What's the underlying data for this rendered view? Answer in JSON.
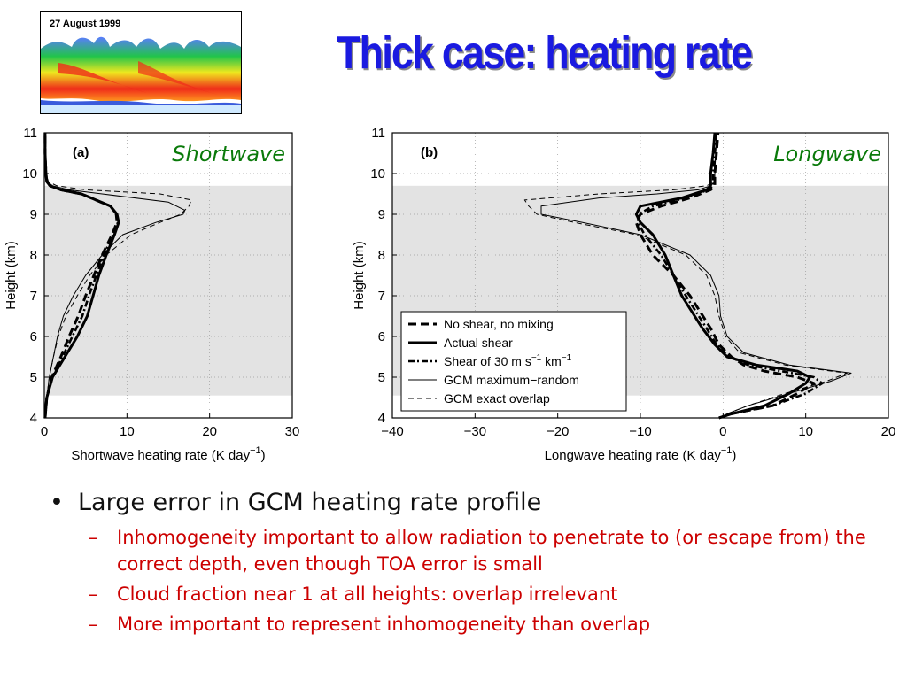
{
  "title": "Thick case: heating rate",
  "thumbnail": {
    "date_label": "27 August 1999"
  },
  "chart_data": [
    {
      "type": "line",
      "panel_label": "(a)",
      "title": "Shortwave",
      "title_color": "#0a7a0a",
      "xlabel": "Shortwave heating rate (K day",
      "xlabel_sup": "−1",
      "xlabel_end": ")",
      "ylabel": "Height (km)",
      "xlim": [
        0,
        30
      ],
      "ylim": [
        4,
        11
      ],
      "xticks": [
        "0",
        "10",
        "20",
        "30"
      ],
      "yticks": [
        "4",
        "5",
        "6",
        "7",
        "8",
        "9",
        "10",
        "11"
      ],
      "grid": true,
      "shaded_band": [
        4.55,
        9.7
      ],
      "series": [
        {
          "style": "dashed-thick",
          "y": [
            4.0,
            4.5,
            5.0,
            5.5,
            6.0,
            6.5,
            7.0,
            7.5,
            8.0,
            8.5,
            8.8,
            9.0,
            9.2,
            9.5,
            9.6,
            9.7,
            9.8,
            10.0,
            10.5,
            11.0
          ],
          "x": [
            0.1,
            0.3,
            0.9,
            2.0,
            3.0,
            4.1,
            5.0,
            6.0,
            7.0,
            8.2,
            8.8,
            8.7,
            8.0,
            4.5,
            2.0,
            0.7,
            0.3,
            0.2,
            0.1,
            0.1
          ]
        },
        {
          "style": "solid-thick",
          "y": [
            4.0,
            4.5,
            5.0,
            5.5,
            6.0,
            6.5,
            7.0,
            7.5,
            8.0,
            8.5,
            8.8,
            9.0,
            9.2,
            9.5,
            9.6,
            9.7,
            9.8,
            10.0,
            10.5,
            11.0
          ],
          "x": [
            0.1,
            0.3,
            1.0,
            2.5,
            4.0,
            5.2,
            5.9,
            6.6,
            7.5,
            8.5,
            9.0,
            8.8,
            8.0,
            4.5,
            2.0,
            0.7,
            0.3,
            0.2,
            0.1,
            0.1
          ]
        },
        {
          "style": "dashdot-thick",
          "y": [
            4.0,
            4.5,
            5.0,
            5.5,
            6.0,
            6.5,
            7.0,
            7.5,
            8.0,
            8.5,
            8.8,
            9.0,
            9.2,
            9.5,
            9.6,
            9.7,
            9.8,
            10.0,
            10.5,
            11.0
          ],
          "x": [
            0.1,
            0.3,
            0.95,
            2.2,
            3.4,
            4.6,
            5.4,
            6.3,
            7.2,
            8.3,
            8.9,
            8.7,
            8.0,
            4.5,
            2.0,
            0.7,
            0.3,
            0.2,
            0.1,
            0.1
          ]
        },
        {
          "style": "solid-thin",
          "y": [
            4.0,
            4.5,
            5.0,
            5.5,
            6.0,
            6.5,
            7.0,
            7.5,
            8.0,
            8.5,
            8.8,
            9.0,
            9.1,
            9.3,
            9.5,
            9.6,
            9.7,
            9.8,
            10.0,
            11.0
          ],
          "x": [
            0.1,
            0.3,
            0.6,
            1.1,
            1.6,
            2.3,
            3.5,
            5.0,
            7.0,
            9.5,
            13.5,
            16.8,
            17.0,
            15.0,
            7.0,
            3.0,
            1.0,
            0.4,
            0.2,
            0.1
          ]
        },
        {
          "style": "dashed-thin",
          "y": [
            4.0,
            4.5,
            5.0,
            5.5,
            6.0,
            6.5,
            7.0,
            7.5,
            8.0,
            8.5,
            8.8,
            9.0,
            9.2,
            9.35,
            9.5,
            9.6,
            9.7,
            9.8,
            10.0,
            11.0
          ],
          "x": [
            0.1,
            0.3,
            0.6,
            1.1,
            1.7,
            2.6,
            4.0,
            5.5,
            7.5,
            10.5,
            14.0,
            16.5,
            17.5,
            17.8,
            14.0,
            5.0,
            1.5,
            0.5,
            0.2,
            0.1
          ]
        }
      ]
    },
    {
      "type": "line",
      "panel_label": "(b)",
      "title": "Longwave",
      "title_color": "#0a7a0a",
      "xlabel": "Longwave heating rate (K day",
      "xlabel_sup": "−1",
      "xlabel_end": ")",
      "ylabel": "Height (km)",
      "xlim": [
        -40,
        20
      ],
      "ylim": [
        4,
        11
      ],
      "xticks": [
        "−40",
        "−30",
        "−20",
        "−10",
        "0",
        "10",
        "20"
      ],
      "yticks": [
        "4",
        "5",
        "6",
        "7",
        "8",
        "9",
        "10",
        "11"
      ],
      "grid": true,
      "shaded_band": [
        4.55,
        9.7
      ],
      "legend_position": "lower-right",
      "legend": [
        {
          "label": "No shear, no mixing",
          "style": "dashed-thick"
        },
        {
          "label": "Actual shear",
          "style": "solid-thick"
        },
        {
          "label": "Shear of 30 m s",
          "sup1": "−1",
          "mid": " km",
          "sup2": "−1",
          "style": "dashdot-thick"
        },
        {
          "label": "GCM maximum−random",
          "style": "solid-thin"
        },
        {
          "label": "GCM exact overlap",
          "style": "dashed-thin"
        }
      ],
      "series": [
        {
          "style": "dashed-thick",
          "y": [
            4.0,
            4.1,
            4.3,
            4.6,
            4.85,
            5.0,
            5.15,
            5.3,
            5.5,
            5.8,
            6.2,
            7.0,
            7.5,
            8.0,
            8.5,
            8.8,
            9.0,
            9.2,
            9.4,
            9.6,
            9.7,
            9.8,
            10.0,
            10.5,
            11.0
          ],
          "x": [
            -0.5,
            1.0,
            6.0,
            9.0,
            11.0,
            9.0,
            5.0,
            2.5,
            1.0,
            -0.5,
            -1.5,
            -4.0,
            -6.0,
            -8.5,
            -10.0,
            -10.5,
            -10.0,
            -7.5,
            -4.0,
            -1.5,
            -1.0,
            -1.0,
            -1.0,
            -0.8,
            -0.6
          ]
        },
        {
          "style": "solid-thick",
          "y": [
            4.0,
            4.1,
            4.3,
            4.6,
            4.85,
            5.0,
            5.15,
            5.3,
            5.5,
            5.8,
            6.2,
            7.0,
            7.5,
            8.0,
            8.5,
            8.8,
            9.0,
            9.2,
            9.4,
            9.6,
            9.7,
            9.8,
            10.0,
            10.5,
            11.0
          ],
          "x": [
            -0.5,
            1.0,
            5.0,
            8.0,
            10.0,
            10.5,
            9.0,
            4.0,
            0.5,
            -1.0,
            -2.5,
            -5.0,
            -6.0,
            -7.0,
            -8.5,
            -10.0,
            -10.5,
            -10.0,
            -5.0,
            -2.0,
            -1.5,
            -1.5,
            -1.5,
            -1.2,
            -1.0
          ]
        },
        {
          "style": "dashdot-thick",
          "y": [
            4.0,
            4.1,
            4.3,
            4.6,
            4.85,
            5.0,
            5.15,
            5.3,
            5.5,
            5.8,
            6.2,
            7.0,
            7.5,
            8.0,
            8.5,
            8.8,
            9.0,
            9.2,
            9.4,
            9.6,
            9.7,
            9.8,
            10.0,
            10.5,
            11.0
          ],
          "x": [
            -0.5,
            1.0,
            6.0,
            10.0,
            12.0,
            11.0,
            7.0,
            3.0,
            0.8,
            -0.8,
            -2.0,
            -4.5,
            -6.0,
            -7.5,
            -9.5,
            -10.3,
            -10.2,
            -8.5,
            -4.5,
            -1.8,
            -1.2,
            -1.2,
            -1.2,
            -1.0,
            -0.8
          ]
        },
        {
          "style": "solid-thin",
          "y": [
            4.0,
            4.1,
            4.3,
            4.6,
            4.9,
            5.1,
            5.3,
            5.6,
            6.0,
            6.5,
            7.0,
            7.5,
            8.0,
            8.5,
            8.8,
            9.0,
            9.2,
            9.4,
            9.5,
            9.6,
            9.7,
            9.8,
            10.0,
            11.0
          ],
          "x": [
            -0.5,
            0.5,
            3.0,
            8.0,
            13.0,
            15.5,
            8.0,
            2.5,
            0.5,
            -0.3,
            -0.5,
            -1.5,
            -4.0,
            -10.0,
            -17.0,
            -22.0,
            -22.0,
            -15.0,
            -8.0,
            -3.0,
            -1.5,
            -1.0,
            -1.0,
            -0.8
          ]
        },
        {
          "style": "dashed-thin",
          "y": [
            4.0,
            4.1,
            4.3,
            4.6,
            4.9,
            5.1,
            5.3,
            5.6,
            6.0,
            6.5,
            7.0,
            7.5,
            8.0,
            8.5,
            8.8,
            9.0,
            9.2,
            9.35,
            9.5,
            9.6,
            9.7,
            9.8,
            10.0,
            11.0
          ],
          "x": [
            -0.5,
            0.5,
            3.0,
            7.5,
            12.5,
            15.0,
            7.5,
            2.0,
            0.3,
            -0.5,
            -1.0,
            -2.0,
            -4.5,
            -10.5,
            -18.0,
            -22.5,
            -23.5,
            -24.0,
            -15.0,
            -6.0,
            -2.0,
            -1.0,
            -1.0,
            -0.8
          ]
        }
      ]
    }
  ],
  "bullets": {
    "main": "Large error in GCM heating rate profile",
    "subs": [
      "Inhomogeneity important to allow radiation to penetrate to (or escape from) the correct depth, even though TOA error is small",
      "Cloud fraction near 1 at all heights: overlap irrelevant",
      "More important to represent inhomogeneity than overlap"
    ]
  }
}
